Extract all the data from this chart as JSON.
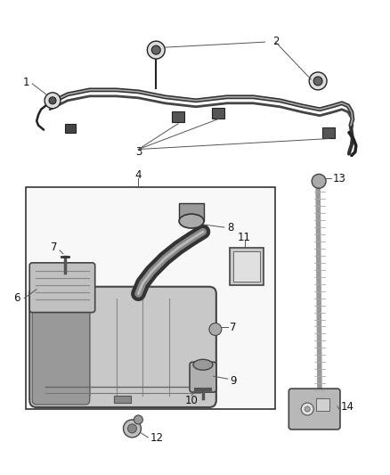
{
  "background_color": "#ffffff",
  "figsize": [
    4.38,
    5.33
  ],
  "dpi": 100,
  "label_fontsize": 8.5,
  "line_color": "#555555",
  "dark": "#222222",
  "gray": "#888888",
  "lgray": "#cccccc",
  "dgray": "#444444"
}
